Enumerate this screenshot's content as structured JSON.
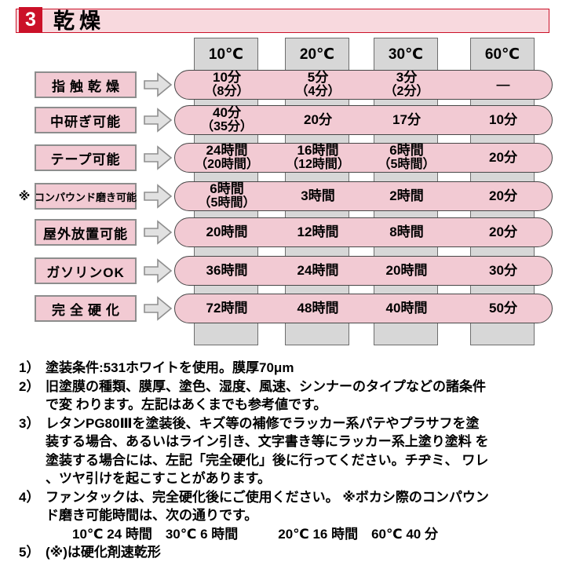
{
  "header": {
    "section_number": "3",
    "title": "乾燥"
  },
  "table": {
    "temperatures": [
      "10℃",
      "20℃",
      "30℃",
      "60℃"
    ],
    "rows": [
      {
        "label": "指触乾燥",
        "note_mark": "",
        "cells": [
          {
            "main": "10分",
            "sub": "（8分）"
          },
          {
            "main": "5分",
            "sub": "（4分）"
          },
          {
            "main": "3分",
            "sub": "（2分）"
          },
          {
            "main": "—",
            "sub": ""
          }
        ]
      },
      {
        "label": "中研ぎ可能",
        "note_mark": "",
        "cells": [
          {
            "main": "40分",
            "sub": "（35分）"
          },
          {
            "main": "20分",
            "sub": ""
          },
          {
            "main": "17分",
            "sub": ""
          },
          {
            "main": "10分",
            "sub": ""
          }
        ]
      },
      {
        "label": "テープ可能",
        "note_mark": "",
        "cells": [
          {
            "main": "24時間",
            "sub": "（20時間）"
          },
          {
            "main": "16時間",
            "sub": "（12時間）"
          },
          {
            "main": "6時間",
            "sub": "（5時間）"
          },
          {
            "main": "20分",
            "sub": ""
          }
        ]
      },
      {
        "label": "コンパウンド磨き可能",
        "note_mark": "※",
        "cells": [
          {
            "main": "6時間",
            "sub": "（5時間）"
          },
          {
            "main": "3時間",
            "sub": ""
          },
          {
            "main": "2時間",
            "sub": ""
          },
          {
            "main": "20分",
            "sub": ""
          }
        ]
      },
      {
        "label": "屋外放置可能",
        "note_mark": "",
        "cells": [
          {
            "main": "20時間",
            "sub": ""
          },
          {
            "main": "12時間",
            "sub": ""
          },
          {
            "main": "8時間",
            "sub": ""
          },
          {
            "main": "20分",
            "sub": ""
          }
        ]
      },
      {
        "label": "ガソリンOK",
        "note_mark": "",
        "cells": [
          {
            "main": "36時間",
            "sub": ""
          },
          {
            "main": "24時間",
            "sub": ""
          },
          {
            "main": "20時間",
            "sub": ""
          },
          {
            "main": "30分",
            "sub": ""
          }
        ]
      },
      {
        "label": "完全硬化",
        "note_mark": "",
        "cells": [
          {
            "main": "72時間",
            "sub": ""
          },
          {
            "main": "48時間",
            "sub": ""
          },
          {
            "main": "40時間",
            "sub": ""
          },
          {
            "main": "50分",
            "sub": ""
          }
        ]
      }
    ]
  },
  "notes": [
    {
      "label": "1）",
      "lines": [
        "塗装条件:531ホワイトを使用。膜厚70μm"
      ]
    },
    {
      "label": "2）",
      "lines": [
        "旧塗膜の種類、膜厚、塗色、湿度、風速、シンナーのタイプなどの諸条件",
        "で変 わります。左記はあくまでも参考値です。"
      ]
    },
    {
      "label": "3）",
      "lines": [
        "レタンPG80Ⅲを塗装後、キズ等の補修でラッカー系パテやプラサフを塗",
        "装する場合、あるいはライン引き、文字書き等にラッカー系上塗り塗料 を",
        "塗装する場合には、左記「完全硬化」後に行ってください。チヂミ、 ワレ",
        "、ツヤ引けを起こすことがあります。"
      ]
    },
    {
      "label": "4）",
      "lines": [
        "ファンタックは、完全硬化後にご使用ください。 ※ボカシ際のコンパウン",
        "ド磨き可能時間は、次の通りです。",
        "　　10℃ 24 時間　30℃ 6 時間　　　20℃ 16 時間　60℃ 40 分"
      ]
    },
    {
      "label": "5）",
      "lines": [
        "(※)は硬化剤速乾形"
      ]
    }
  ]
}
